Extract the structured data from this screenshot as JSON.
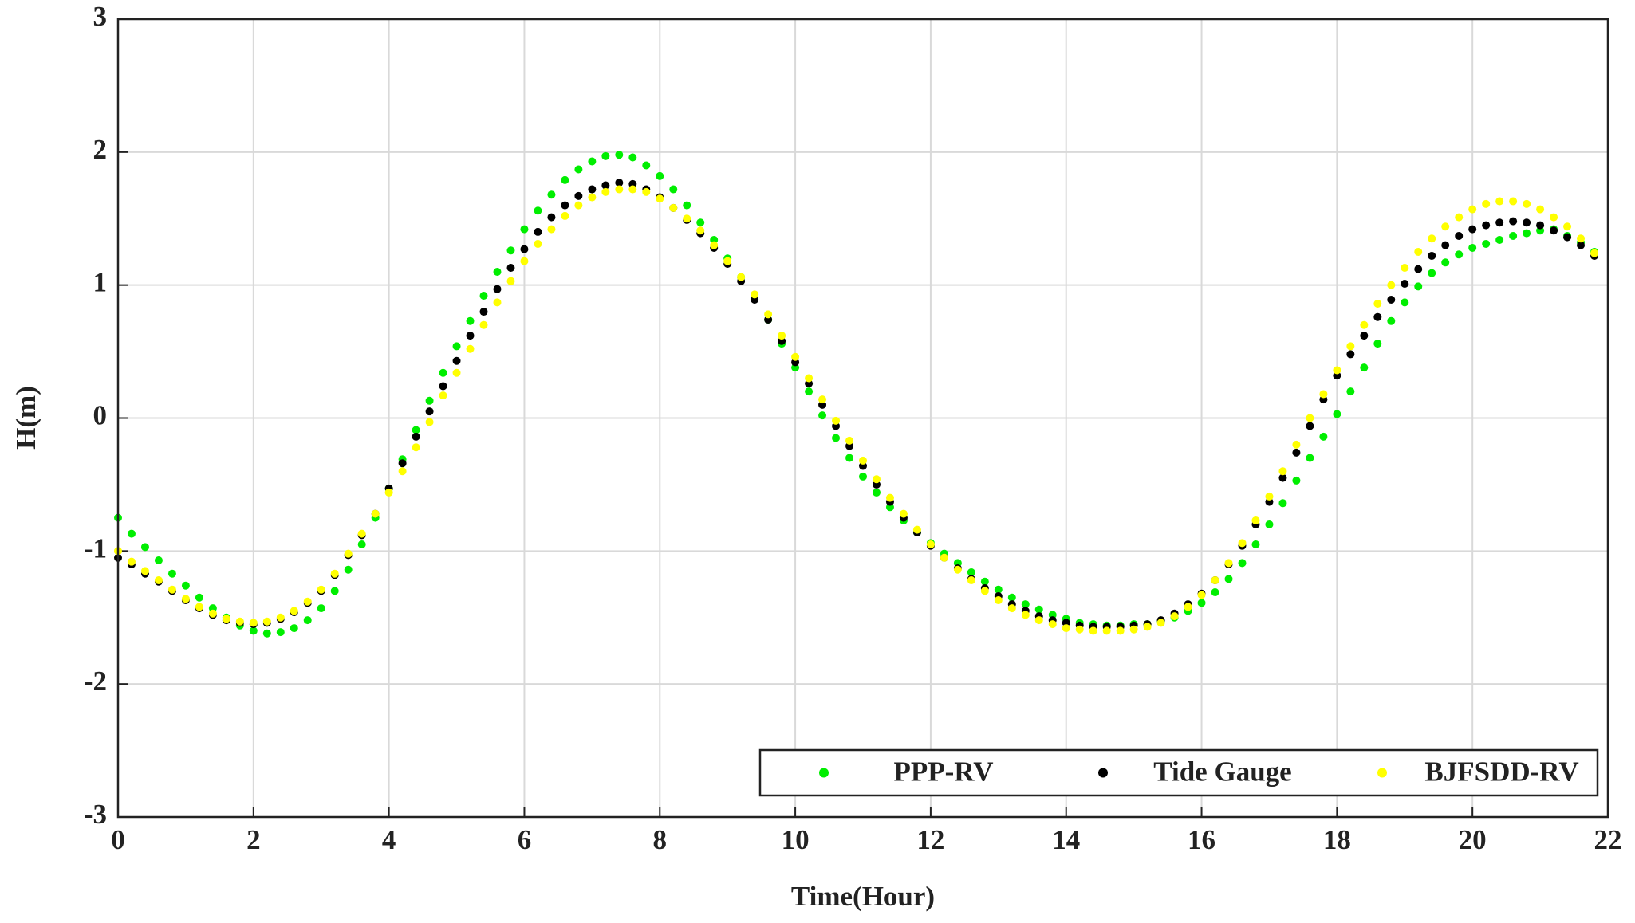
{
  "chart_data": {
    "type": "scatter",
    "xlabel": "Time(Hour)",
    "ylabel": "H(m)",
    "xlim": [
      0,
      22
    ],
    "xticks": [
      0,
      2,
      4,
      6,
      8,
      10,
      12,
      14,
      16,
      18,
      20,
      22
    ],
    "ylim": [
      -3,
      3
    ],
    "yticks": [
      -3,
      -2,
      -1,
      0,
      1,
      2,
      3
    ],
    "grid": true,
    "legend": "lower right",
    "x": [
      0,
      0.2,
      0.4,
      0.6,
      0.8,
      1,
      1.2,
      1.4,
      1.6,
      1.8,
      2,
      2.2,
      2.4,
      2.6,
      2.8,
      3,
      3.2,
      3.4,
      3.6,
      3.8,
      4,
      4.2,
      4.4,
      4.6,
      4.8,
      5,
      5.2,
      5.4,
      5.6,
      5.8,
      6,
      6.2,
      6.4,
      6.6,
      6.8,
      7,
      7.2,
      7.4,
      7.6,
      7.8,
      8,
      8.2,
      8.4,
      8.6,
      8.8,
      9,
      9.2,
      9.4,
      9.6,
      9.8,
      10,
      10.2,
      10.4,
      10.6,
      10.8,
      11,
      11.2,
      11.4,
      11.6,
      11.8,
      12,
      12.2,
      12.4,
      12.6,
      12.8,
      13,
      13.2,
      13.4,
      13.6,
      13.8,
      14,
      14.2,
      14.4,
      14.6,
      14.8,
      15,
      15.2,
      15.4,
      15.6,
      15.8,
      16,
      16.2,
      16.4,
      16.6,
      16.8,
      17,
      17.2,
      17.4,
      17.6,
      17.8,
      18,
      18.2,
      18.4,
      18.6,
      18.8,
      19,
      19.2,
      19.4,
      19.6,
      19.8,
      20,
      20.2,
      20.4,
      20.6,
      20.8,
      21,
      21.2,
      21.4,
      21.6,
      21.8
    ],
    "series": [
      {
        "name": "PPP-RV",
        "color": "#00ee00",
        "values": [
          -0.75,
          -0.87,
          -0.97,
          -1.07,
          -1.17,
          -1.26,
          -1.35,
          -1.43,
          -1.5,
          -1.56,
          -1.6,
          -1.62,
          -1.61,
          -1.58,
          -1.52,
          -1.43,
          -1.3,
          -1.14,
          -0.95,
          -0.75,
          -0.53,
          -0.31,
          -0.09,
          0.13,
          0.34,
          0.54,
          0.73,
          0.92,
          1.1,
          1.26,
          1.42,
          1.56,
          1.68,
          1.79,
          1.87,
          1.93,
          1.97,
          1.98,
          1.96,
          1.9,
          1.82,
          1.72,
          1.6,
          1.47,
          1.34,
          1.2,
          1.06,
          0.91,
          0.74,
          0.56,
          0.38,
          0.2,
          0.02,
          -0.15,
          -0.3,
          -0.44,
          -0.56,
          -0.67,
          -0.77,
          -0.86,
          -0.94,
          -1.02,
          -1.09,
          -1.16,
          -1.23,
          -1.29,
          -1.35,
          -1.4,
          -1.44,
          -1.48,
          -1.51,
          -1.54,
          -1.55,
          -1.56,
          -1.56,
          -1.55,
          -1.55,
          -1.53,
          -1.5,
          -1.45,
          -1.39,
          -1.31,
          -1.21,
          -1.09,
          -0.95,
          -0.8,
          -0.64,
          -0.47,
          -0.3,
          -0.14,
          0.03,
          0.2,
          0.38,
          0.56,
          0.73,
          0.87,
          0.99,
          1.09,
          1.17,
          1.23,
          1.28,
          1.31,
          1.34,
          1.37,
          1.39,
          1.41,
          1.42,
          1.37,
          1.32,
          1.25
        ]
      },
      {
        "name": "Tide Gauge",
        "color": "#000000",
        "values": [
          -1.05,
          -1.1,
          -1.17,
          -1.23,
          -1.3,
          -1.37,
          -1.43,
          -1.48,
          -1.52,
          -1.54,
          -1.55,
          -1.54,
          -1.51,
          -1.46,
          -1.39,
          -1.3,
          -1.18,
          -1.03,
          -0.88,
          -0.72,
          -0.53,
          -0.34,
          -0.14,
          0.05,
          0.24,
          0.43,
          0.62,
          0.8,
          0.97,
          1.13,
          1.27,
          1.4,
          1.51,
          1.6,
          1.67,
          1.72,
          1.75,
          1.77,
          1.76,
          1.72,
          1.66,
          1.58,
          1.49,
          1.39,
          1.28,
          1.16,
          1.03,
          0.89,
          0.74,
          0.58,
          0.42,
          0.26,
          0.1,
          -0.06,
          -0.21,
          -0.36,
          -0.5,
          -0.63,
          -0.75,
          -0.86,
          -0.96,
          -1.05,
          -1.13,
          -1.21,
          -1.28,
          -1.34,
          -1.4,
          -1.45,
          -1.49,
          -1.52,
          -1.54,
          -1.56,
          -1.57,
          -1.57,
          -1.57,
          -1.56,
          -1.55,
          -1.52,
          -1.47,
          -1.4,
          -1.32,
          -1.22,
          -1.1,
          -0.96,
          -0.8,
          -0.63,
          -0.45,
          -0.26,
          -0.06,
          0.14,
          0.32,
          0.48,
          0.62,
          0.76,
          0.89,
          1.01,
          1.12,
          1.22,
          1.3,
          1.37,
          1.42,
          1.45,
          1.47,
          1.48,
          1.47,
          1.45,
          1.41,
          1.36,
          1.3,
          1.22
        ]
      },
      {
        "name": "BJFSDD-RV",
        "color": "#ffff00",
        "values": [
          -1.0,
          -1.08,
          -1.15,
          -1.22,
          -1.29,
          -1.36,
          -1.42,
          -1.47,
          -1.51,
          -1.53,
          -1.54,
          -1.53,
          -1.5,
          -1.45,
          -1.38,
          -1.29,
          -1.17,
          -1.02,
          -0.87,
          -0.72,
          -0.56,
          -0.4,
          -0.22,
          -0.03,
          0.17,
          0.34,
          0.52,
          0.7,
          0.87,
          1.03,
          1.18,
          1.31,
          1.42,
          1.52,
          1.6,
          1.66,
          1.7,
          1.72,
          1.72,
          1.7,
          1.65,
          1.58,
          1.5,
          1.41,
          1.3,
          1.18,
          1.06,
          0.93,
          0.78,
          0.62,
          0.46,
          0.3,
          0.14,
          -0.02,
          -0.17,
          -0.32,
          -0.46,
          -0.6,
          -0.72,
          -0.84,
          -0.95,
          -1.05,
          -1.14,
          -1.22,
          -1.3,
          -1.37,
          -1.43,
          -1.48,
          -1.52,
          -1.55,
          -1.58,
          -1.59,
          -1.6,
          -1.6,
          -1.6,
          -1.59,
          -1.57,
          -1.54,
          -1.49,
          -1.42,
          -1.33,
          -1.22,
          -1.09,
          -0.94,
          -0.77,
          -0.59,
          -0.4,
          -0.2,
          0.0,
          0.18,
          0.36,
          0.54,
          0.7,
          0.86,
          1.0,
          1.13,
          1.25,
          1.35,
          1.44,
          1.51,
          1.57,
          1.61,
          1.63,
          1.63,
          1.61,
          1.57,
          1.51,
          1.44,
          1.35,
          1.24
        ]
      }
    ]
  }
}
